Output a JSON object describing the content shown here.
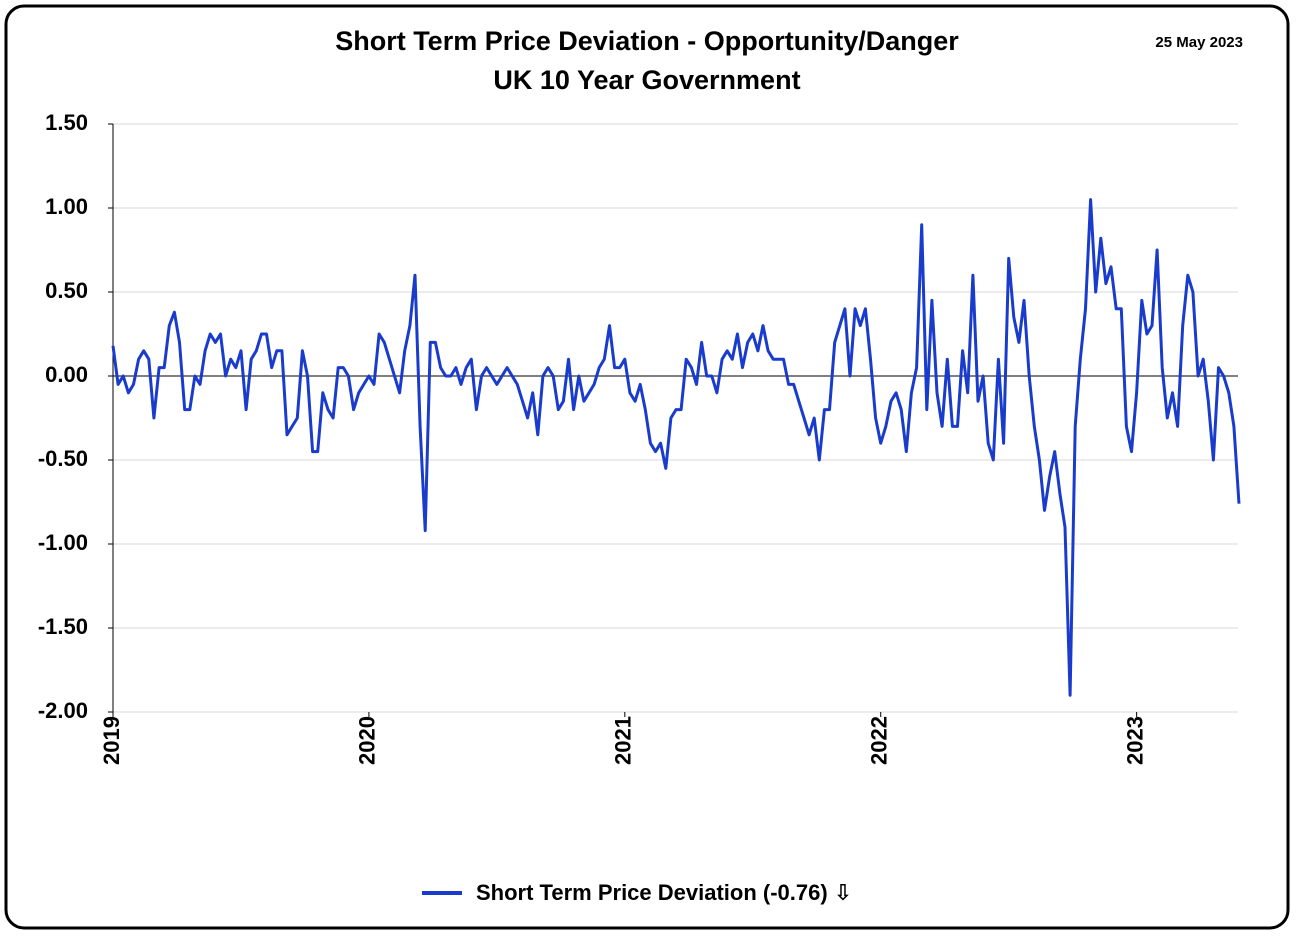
{
  "chart_data": {
    "type": "line",
    "title": "Short Term Price Deviation - Opportunity/Danger",
    "subtitle": "UK 10 Year Government",
    "annotation": "25 May 2023",
    "xlim": [
      2019,
      2023.4
    ],
    "xticks": [
      2019,
      2020,
      2021,
      2022,
      2023
    ],
    "ylim": [
      -2,
      1.5
    ],
    "yticks": [
      {
        "value": 1.5,
        "label": "1.50"
      },
      {
        "value": 1,
        "label": "1.00"
      },
      {
        "value": 0.5,
        "label": "0.50"
      },
      {
        "value": 0,
        "label": "0.00"
      },
      {
        "value": -0.5,
        "label": "-0.50"
      },
      {
        "value": -1,
        "label": "-1.00"
      },
      {
        "value": -1.5,
        "label": "-1.50"
      },
      {
        "value": -2,
        "label": "-2.00"
      }
    ],
    "grid": true,
    "legend": "bottom",
    "x": [
      2019,
      2019.02,
      2019.04,
      2019.06,
      2019.08,
      2019.1,
      2019.12,
      2019.14,
      2019.16,
      2019.18,
      2019.2,
      2019.22,
      2019.24,
      2019.26,
      2019.28,
      2019.3,
      2019.32,
      2019.34,
      2019.36,
      2019.38,
      2019.4,
      2019.42,
      2019.44,
      2019.46,
      2019.48,
      2019.5,
      2019.52,
      2019.54,
      2019.56,
      2019.58,
      2019.6,
      2019.62,
      2019.64,
      2019.66,
      2019.68,
      2019.7,
      2019.72,
      2019.74,
      2019.76,
      2019.78,
      2019.8,
      2019.82,
      2019.84,
      2019.86,
      2019.88,
      2019.9,
      2019.92,
      2019.94,
      2019.96,
      2019.98,
      2020,
      2020.02,
      2020.04,
      2020.06,
      2020.08,
      2020.1,
      2020.12,
      2020.14,
      2020.16,
      2020.18,
      2020.2,
      2020.22,
      2020.24,
      2020.26,
      2020.28,
      2020.3,
      2020.32,
      2020.34,
      2020.36,
      2020.38,
      2020.4,
      2020.42,
      2020.44,
      2020.46,
      2020.48,
      2020.5,
      2020.52,
      2020.54,
      2020.56,
      2020.58,
      2020.6,
      2020.62,
      2020.64,
      2020.66,
      2020.68,
      2020.7,
      2020.72,
      2020.74,
      2020.76,
      2020.78,
      2020.8,
      2020.82,
      2020.84,
      2020.86,
      2020.88,
      2020.9,
      2020.92,
      2020.94,
      2020.96,
      2020.98,
      2021,
      2021.02,
      2021.04,
      2021.06,
      2021.08,
      2021.1,
      2021.12,
      2021.14,
      2021.16,
      2021.18,
      2021.2,
      2021.22,
      2021.24,
      2021.26,
      2021.28,
      2021.3,
      2021.32,
      2021.34,
      2021.36,
      2021.38,
      2021.4,
      2021.42,
      2021.44,
      2021.46,
      2021.48,
      2021.5,
      2021.52,
      2021.54,
      2021.56,
      2021.58,
      2021.6,
      2021.62,
      2021.64,
      2021.66,
      2021.68,
      2021.7,
      2021.72,
      2021.74,
      2021.76,
      2021.78,
      2021.8,
      2021.82,
      2021.84,
      2021.86,
      2021.88,
      2021.9,
      2021.92,
      2021.94,
      2021.96,
      2021.98,
      2022,
      2022.02,
      2022.04,
      2022.06,
      2022.08,
      2022.1,
      2022.12,
      2022.14,
      2022.16,
      2022.18,
      2022.2,
      2022.22,
      2022.24,
      2022.26,
      2022.28,
      2022.3,
      2022.32,
      2022.34,
      2022.36,
      2022.38,
      2022.4,
      2022.42,
      2022.44,
      2022.46,
      2022.48,
      2022.5,
      2022.52,
      2022.54,
      2022.56,
      2022.58,
      2022.6,
      2022.62,
      2022.64,
      2022.66,
      2022.68,
      2022.7,
      2022.72,
      2022.74,
      2022.76,
      2022.78,
      2022.8,
      2022.82,
      2022.84,
      2022.86,
      2022.88,
      2022.9,
      2022.92,
      2022.94,
      2022.96,
      2022.98,
      2023,
      2023.02,
      2023.04,
      2023.06,
      2023.08,
      2023.1,
      2023.12,
      2023.14,
      2023.16,
      2023.18,
      2023.2,
      2023.22,
      2023.24,
      2023.26,
      2023.28,
      2023.3,
      2023.32,
      2023.34,
      2023.36,
      2023.38,
      2023.4
    ],
    "series": [
      {
        "name": "Short Term Price Deviation (-0.76) ⇩",
        "color": "#1a3ccc",
        "values": [
          0.18,
          -0.05,
          0,
          -0.1,
          -0.05,
          0.1,
          0.15,
          0.1,
          -0.25,
          0.05,
          0.05,
          0.3,
          0.38,
          0.2,
          -0.2,
          -0.2,
          0,
          -0.05,
          0.15,
          0.25,
          0.2,
          0.25,
          0,
          0.1,
          0.05,
          0.15,
          -0.2,
          0.1,
          0.15,
          0.25,
          0.25,
          0.05,
          0.15,
          0.15,
          -0.35,
          -0.3,
          -0.25,
          0.15,
          0,
          -0.45,
          -0.45,
          -0.1,
          -0.2,
          -0.25,
          0.05,
          0.05,
          0,
          -0.2,
          -0.1,
          -0.05,
          0,
          -0.05,
          0.25,
          0.2,
          0.1,
          0,
          -0.1,
          0.15,
          0.3,
          0.6,
          -0.3,
          -0.92,
          0.2,
          0.2,
          0.05,
          0,
          0,
          0.05,
          -0.05,
          0.05,
          0.1,
          -0.2,
          0,
          0.05,
          0,
          -0.05,
          0,
          0.05,
          0,
          -0.05,
          -0.15,
          -0.25,
          -0.1,
          -0.35,
          0,
          0.05,
          0,
          -0.2,
          -0.15,
          0.1,
          -0.2,
          0,
          -0.15,
          -0.1,
          -0.05,
          0.05,
          0.1,
          0.3,
          0.05,
          0.05,
          0.1,
          -0.1,
          -0.15,
          -0.05,
          -0.2,
          -0.4,
          -0.45,
          -0.4,
          -0.55,
          -0.25,
          -0.2,
          -0.2,
          0.1,
          0.05,
          -0.05,
          0.2,
          0,
          0,
          -0.1,
          0.1,
          0.15,
          0.1,
          0.25,
          0.05,
          0.2,
          0.25,
          0.15,
          0.3,
          0.15,
          0.1,
          0.1,
          0.1,
          -0.05,
          -0.05,
          -0.15,
          -0.25,
          -0.35,
          -0.25,
          -0.5,
          -0.2,
          -0.2,
          0.2,
          0.3,
          0.4,
          0,
          0.4,
          0.3,
          0.4,
          0.1,
          -0.25,
          -0.4,
          -0.3,
          -0.15,
          -0.1,
          -0.2,
          -0.45,
          -0.1,
          0.05,
          0.9,
          -0.2,
          0.45,
          -0.1,
          -0.3,
          0.1,
          -0.3,
          -0.3,
          0.15,
          -0.1,
          0.6,
          -0.15,
          0,
          -0.4,
          -0.5,
          0.1,
          -0.4,
          0.7,
          0.35,
          0.2,
          0.45,
          0,
          -0.3,
          -0.5,
          -0.8,
          -0.6,
          -0.45,
          -0.7,
          -0.9,
          -1.9,
          -0.3,
          0.1,
          0.4,
          1.05,
          0.5,
          0.82,
          0.55,
          0.65,
          0.4,
          0.4,
          -0.3,
          -0.45,
          -0.1,
          0.45,
          0.25,
          0.3,
          0.75,
          0.05,
          -0.25,
          -0.1,
          -0.3,
          0.3,
          0.6,
          0.5,
          0,
          0.1,
          -0.15,
          -0.5,
          0.05,
          0,
          -0.1,
          -0.3,
          -0.76
        ]
      }
    ]
  }
}
